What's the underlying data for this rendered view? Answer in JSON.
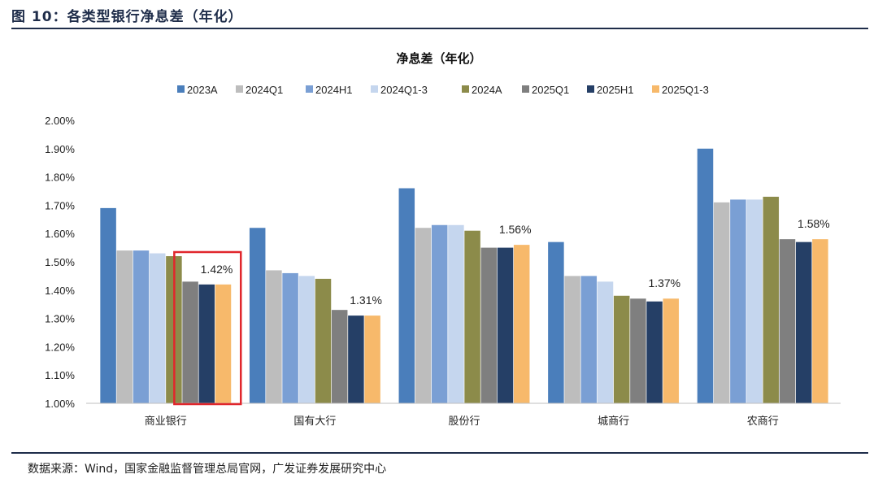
{
  "figure": {
    "header": "图 10：各类型银行净息差（年化）",
    "source": "数据来源：Wind，国家金融监督管理总局官网，广发证券发展研究中心"
  },
  "chart_data": {
    "type": "bar",
    "title": "净息差（年化）",
    "xlabel": "",
    "ylabel": "",
    "ylim": [
      1.0,
      2.0
    ],
    "yticks": [
      "1.00%",
      "1.10%",
      "1.20%",
      "1.30%",
      "1.40%",
      "1.50%",
      "1.60%",
      "1.70%",
      "1.80%",
      "1.90%",
      "2.00%"
    ],
    "legend_position": "top",
    "grid": false,
    "categories": [
      "商业银行",
      "国有大行",
      "股份行",
      "城商行",
      "农商行"
    ],
    "series": [
      {
        "name": "2023A",
        "color": "#4a7ebb",
        "values": [
          1.69,
          1.62,
          1.76,
          1.57,
          1.9
        ]
      },
      {
        "name": "2024Q1",
        "color": "#bdbdbd",
        "values": [
          1.54,
          1.47,
          1.62,
          1.45,
          1.71
        ]
      },
      {
        "name": "2024H1",
        "color": "#7a9fd4",
        "values": [
          1.54,
          1.46,
          1.63,
          1.45,
          1.72
        ]
      },
      {
        "name": "2024Q1-3",
        "color": "#c5d6ee",
        "values": [
          1.53,
          1.45,
          1.63,
          1.43,
          1.72
        ]
      },
      {
        "name": "2024A",
        "color": "#8c8b4a",
        "values": [
          1.52,
          1.44,
          1.61,
          1.38,
          1.73
        ]
      },
      {
        "name": "2025Q1",
        "color": "#7f7f7f",
        "values": [
          1.43,
          1.33,
          1.55,
          1.37,
          1.58
        ]
      },
      {
        "name": "2025H1",
        "color": "#253f66",
        "values": [
          1.42,
          1.31,
          1.55,
          1.36,
          1.57
        ]
      },
      {
        "name": "2025Q1-3",
        "color": "#f7b96b",
        "values": [
          1.42,
          1.31,
          1.56,
          1.37,
          1.58
        ]
      }
    ],
    "data_labels": [
      "1.42%",
      "1.31%",
      "1.56%",
      "1.37%",
      "1.58%"
    ],
    "highlight": {
      "category": "商业银行",
      "series": [
        "2025Q1",
        "2025H1",
        "2025Q1-3"
      ],
      "color": "#e0262c"
    }
  }
}
